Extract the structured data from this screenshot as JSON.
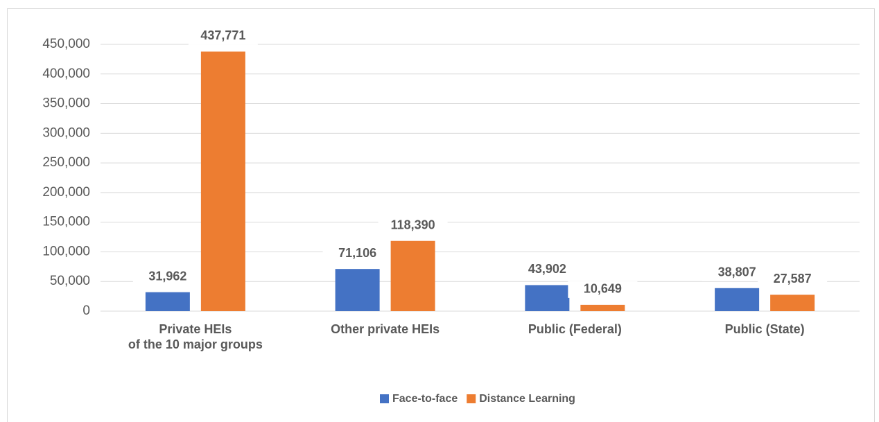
{
  "chart_data": {
    "type": "bar",
    "categories": [
      "Private HEIs\nof the 10 major groups",
      "Other private HEIs",
      "Public (Federal)",
      "Public (State)"
    ],
    "series": [
      {
        "name": "Face-to-face",
        "color": "#4472c4",
        "values": [
          31962,
          71106,
          43902,
          38807
        ],
        "value_labels": [
          "31,962",
          "71,106",
          "43,902",
          "38,807"
        ]
      },
      {
        "name": "Distance Learning",
        "color": "#ed7d31",
        "values": [
          437771,
          118390,
          10649,
          27587
        ],
        "value_labels": [
          "437,771",
          "118,390",
          "10,649",
          "27,587"
        ]
      }
    ],
    "ylim": [
      0,
      450000
    ],
    "yticks": [
      0,
      {
        "value": 50000,
        "label": "50,000"
      },
      {
        "value": 100000,
        "label": "100,000"
      },
      {
        "value": 150000,
        "label": "150,000"
      },
      {
        "value": 200000,
        "label": "200,000"
      },
      {
        "value": 250000,
        "label": "250,000"
      },
      {
        "value": 300000,
        "label": "300,000"
      },
      {
        "value": 350000,
        "label": "350,000"
      },
      {
        "value": 400000,
        "label": "400,000"
      },
      {
        "value": 450000,
        "label": "450,000"
      }
    ],
    "grid": true,
    "legend": "bottom"
  }
}
